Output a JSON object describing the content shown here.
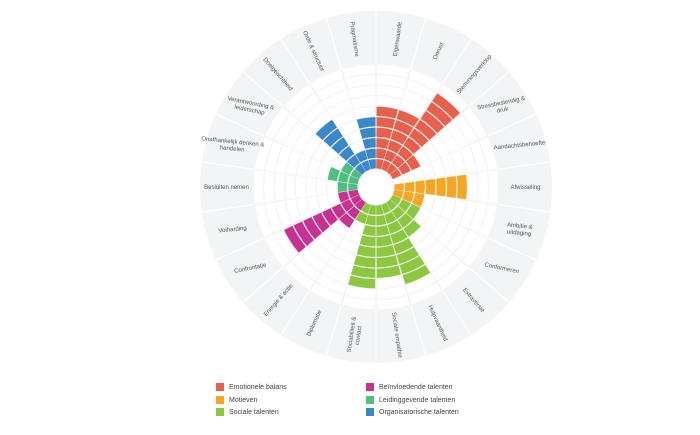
{
  "chart_data": {
    "type": "polar-bar",
    "max_level": 10,
    "grid": true,
    "legend_position": "bottom",
    "groups": [
      {
        "name": "Emotionele balans",
        "color": "#e8604c"
      },
      {
        "name": "Motieven",
        "color": "#f5a623"
      },
      {
        "name": "Sociale talenten",
        "color": "#8cc83f"
      },
      {
        "name": "Beïnvloedende talenten",
        "color": "#c8318f"
      },
      {
        "name": "Leidinggevende talenten",
        "color": "#4fbf7f"
      },
      {
        "name": "Organisatorische talenten",
        "color": "#3b87cc"
      }
    ],
    "categories": [
      {
        "label": "Eigenwaarde",
        "group": 0,
        "value": 6
      },
      {
        "label": "Onrust",
        "group": 0,
        "value": 6
      },
      {
        "label": "Stemmingsverloop",
        "group": 0,
        "value": 9
      },
      {
        "label": "Stressbestendig & druk",
        "group": 0,
        "value": 3
      },
      {
        "label": "Aandachtsbehoefte",
        "group": 1,
        "value": 0
      },
      {
        "label": "Afwisseling",
        "group": 1,
        "value": 7
      },
      {
        "label": "Ambitie & uitdaging",
        "group": 1,
        "value": 3
      },
      {
        "label": "Conformeren",
        "group": 2,
        "value": 3
      },
      {
        "label": "Extraversie",
        "group": 2,
        "value": 4
      },
      {
        "label": "Hulpvaardheid",
        "group": 2,
        "value": 8
      },
      {
        "label": "Sociale empathie",
        "group": 2,
        "value": 7
      },
      {
        "label": "Sociabiliteit &contact",
        "group": 2,
        "value": 8
      },
      {
        "label": "Diplomatie",
        "group": 2,
        "value": 2
      },
      {
        "label": "Energie & actie",
        "group": 3,
        "value": 3
      },
      {
        "label": "Confrontatie",
        "group": 3,
        "value": 8
      },
      {
        "label": "Volharding",
        "group": 3,
        "value": 2
      },
      {
        "label": "Besluiten nemen",
        "group": 4,
        "value": 2
      },
      {
        "label": "Onafhankelijk denken & handelen",
        "group": 4,
        "value": 3
      },
      {
        "label": "Verantwoording & leiderschap",
        "group": 4,
        "value": 2
      },
      {
        "label": "Doelgerichtheid",
        "group": 5,
        "value": 6
      },
      {
        "label": "Orde & structuur",
        "group": 5,
        "value": 2
      },
      {
        "label": "Pragmatisme",
        "group": 5,
        "value": 5
      }
    ]
  }
}
